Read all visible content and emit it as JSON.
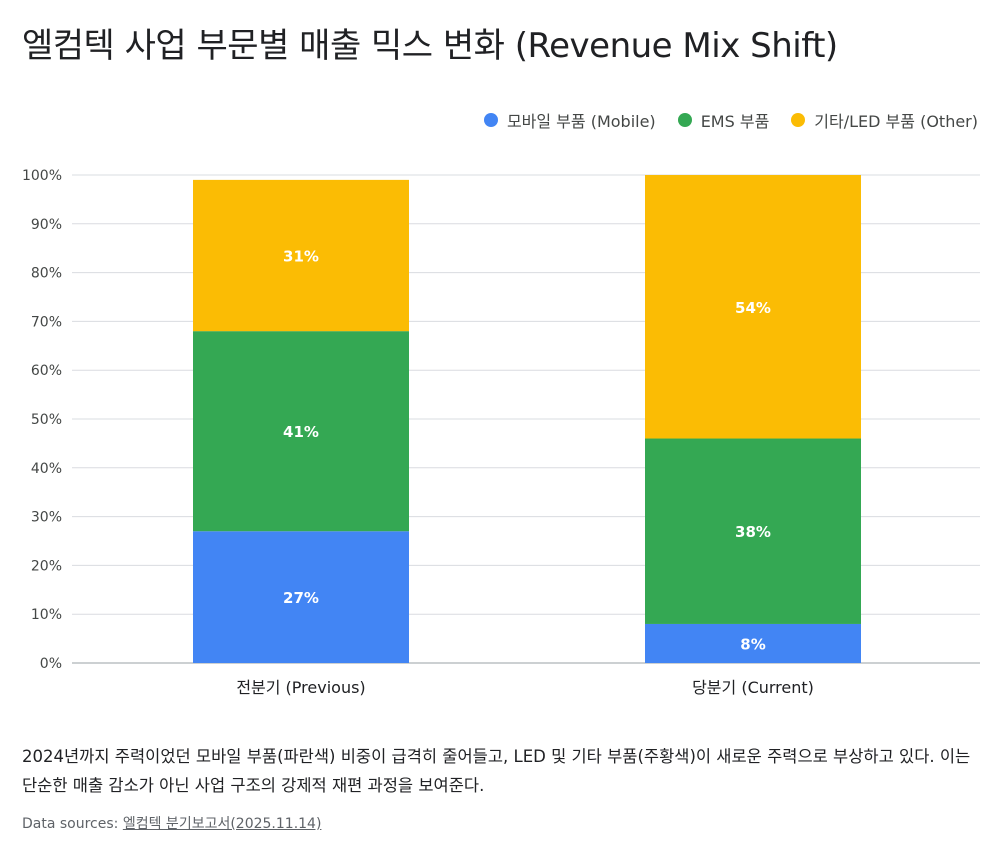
{
  "title": "엘컴텍 사업 부문별 매출 믹스 변화 (Revenue Mix Shift)",
  "chart_data": {
    "type": "bar",
    "stacked": true,
    "categories": [
      "전분기 (Previous)",
      "당분기 (Current)"
    ],
    "series": [
      {
        "name": "모바일 부품 (Mobile)",
        "color": "#4285F4",
        "values": [
          27,
          8
        ]
      },
      {
        "name": "EMS 부품",
        "color": "#34A853",
        "values": [
          41,
          38
        ]
      },
      {
        "name": "기타/LED 부품 (Other)",
        "color": "#FBBC04",
        "values": [
          31,
          54
        ]
      }
    ],
    "ylim": [
      0,
      100
    ],
    "yticks": [
      "0%",
      "10%",
      "20%",
      "30%",
      "40%",
      "50%",
      "60%",
      "70%",
      "80%",
      "90%",
      "100%"
    ],
    "grid": true,
    "legend_position": "top-right"
  },
  "description": "2024년까지 주력이었던 모바일 부품(파란색) 비중이 급격히 줄어들고, LED 및 기타 부품(주황색)이 새로운 주력으로 부상하고 있다. 이는 단순한 매출 감소가 아닌 사업 구조의 강제적 재편 과정을 보여준다.",
  "sources": {
    "prefix": "Data sources:",
    "link_text": "엘컴텍 분기보고서(2025.11.14)"
  }
}
